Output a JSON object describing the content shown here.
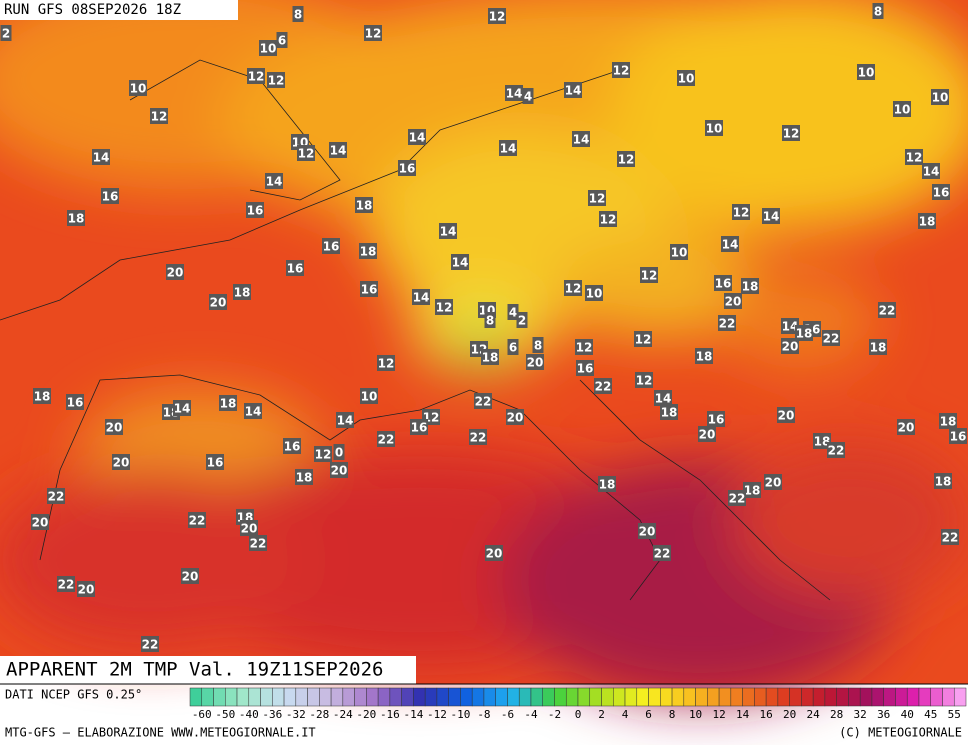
{
  "header": {
    "run": "RUN GFS 08SEP2026 18Z",
    "title": "APPARENT 2M TMP Val. 19Z11SEP2026"
  },
  "footer": {
    "source": "DATI NCEP GFS 0.25°",
    "credits": "MTG-GFS — ELABORAZIONE WWW.METEOGIORNALE.IT",
    "copyright": "(C) METEOGIORNALE"
  },
  "colorbar_ticks": [
    -60,
    -50,
    -40,
    -36,
    -32,
    -28,
    -24,
    -20,
    -16,
    -14,
    -12,
    -10,
    -8,
    -6,
    -4,
    -2,
    0,
    2,
    4,
    6,
    8,
    10,
    12,
    14,
    16,
    20,
    24,
    28,
    32,
    36,
    40,
    45,
    55
  ],
  "map_labels": [
    8,
    12,
    8,
    2,
    12,
    6,
    10,
    12,
    12,
    10,
    12,
    10,
    10,
    14,
    4,
    14,
    10,
    10,
    12,
    10,
    12,
    14,
    10,
    12,
    14,
    14,
    14,
    12,
    12,
    14,
    14,
    16,
    14,
    16,
    16,
    18,
    12,
    12,
    16,
    12,
    14,
    18,
    18,
    14,
    16,
    18,
    10,
    14,
    14,
    16,
    12,
    20,
    18,
    16,
    14,
    12,
    12,
    10,
    16,
    18,
    20,
    22,
    20,
    10,
    4,
    2,
    8,
    22,
    14,
    16,
    18,
    20,
    22,
    12,
    12,
    18,
    6,
    8,
    12,
    20,
    18,
    18,
    12,
    16,
    22,
    12,
    18,
    16,
    10,
    18,
    14,
    18,
    14,
    22,
    14,
    18,
    20,
    14,
    12,
    16,
    16,
    20,
    20,
    20,
    20,
    18,
    16,
    22,
    22,
    16,
    12,
    0,
    18,
    22,
    20,
    16,
    20,
    18,
    20,
    18,
    22,
    18,
    18,
    22,
    22,
    18,
    20,
    20,
    22,
    20,
    22,
    20,
    22,
    20,
    22,
    20,
    22
  ]
}
